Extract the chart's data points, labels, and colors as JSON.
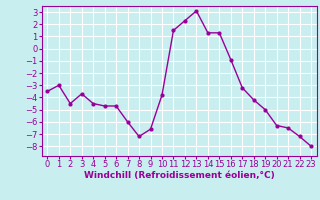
{
  "x": [
    0,
    1,
    2,
    3,
    4,
    5,
    6,
    7,
    8,
    9,
    10,
    11,
    12,
    13,
    14,
    15,
    16,
    17,
    18,
    19,
    20,
    21,
    22,
    23
  ],
  "y": [
    -3.5,
    -3.0,
    -4.5,
    -3.7,
    -4.5,
    -4.7,
    -4.7,
    -6.0,
    -7.2,
    -6.6,
    -3.8,
    1.5,
    2.3,
    3.1,
    1.3,
    1.3,
    -0.9,
    -3.2,
    -4.2,
    -5.0,
    -6.3,
    -6.5,
    -7.2,
    -8.0
  ],
  "line_color": "#990099",
  "marker": "o",
  "marker_size": 2,
  "bg_color": "#c8eef0",
  "grid_color": "#ffffff",
  "xlabel": "Windchill (Refroidissement éolien,°C)",
  "ylim": [
    -8.8,
    3.5
  ],
  "xlim": [
    -0.5,
    23.5
  ],
  "yticks": [
    3,
    2,
    1,
    0,
    -1,
    -2,
    -3,
    -4,
    -5,
    -6,
    -7,
    -8
  ],
  "xticks": [
    0,
    1,
    2,
    3,
    4,
    5,
    6,
    7,
    8,
    9,
    10,
    11,
    12,
    13,
    14,
    15,
    16,
    17,
    18,
    19,
    20,
    21,
    22,
    23
  ],
  "line_color_hex": "#990099",
  "tick_label_color": "#990099",
  "xlabel_fontsize": 6.5,
  "tick_fontsize": 6,
  "line_width": 1.0
}
